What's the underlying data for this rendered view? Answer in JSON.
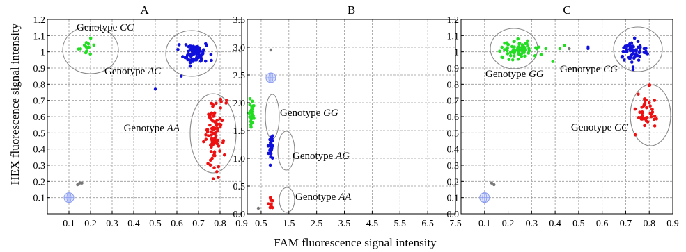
{
  "figure": {
    "y_axis_label": "HEX fluorescence signal intensity",
    "x_axis_label": "FAM fluorescence signal intensity"
  },
  "colors": {
    "green": "#22dd22",
    "blue": "#1010dd",
    "red": "#ee1111",
    "gray": "#777777",
    "grid": "#999999",
    "ellipse": "#888888",
    "ntc": "#8899ee"
  },
  "chart_data": [
    {
      "type": "scatter",
      "title": "A",
      "xlim": [
        0,
        0.9
      ],
      "ylim": [
        0,
        1.2
      ],
      "xticks": [
        0.1,
        0.2,
        0.3,
        0.4,
        0.5,
        0.6,
        0.7,
        0.8,
        0.9
      ],
      "yticks": [
        0.1,
        0.2,
        0.3,
        0.4,
        0.5,
        0.6,
        0.7,
        0.8,
        0.9,
        1.0,
        1.1,
        1.2
      ],
      "grid": true,
      "clusters": [
        {
          "label_prefix": "Genotype",
          "label_italic": "CC",
          "color": "green",
          "cx": 0.19,
          "cy": 1.035,
          "sx": 0.015,
          "sy": 0.03,
          "n": 14
        },
        {
          "label_prefix": "Genotype",
          "label_italic": "AC",
          "color": "blue",
          "cx": 0.68,
          "cy": 0.99,
          "sx": 0.03,
          "sy": 0.03,
          "n": 80
        },
        {
          "label_prefix": "Genotype",
          "label_italic": "AA",
          "color": "red",
          "cx": 0.775,
          "cy": 0.5,
          "sx": 0.02,
          "sy": 0.1,
          "n": 90
        }
      ],
      "outliers": [
        {
          "x": 0.5,
          "y": 0.77,
          "color": "blue"
        },
        {
          "x": 0.62,
          "y": 0.85,
          "color": "blue"
        },
        {
          "x": 0.83,
          "y": 0.7,
          "color": "red"
        },
        {
          "x": 0.785,
          "y": 0.26,
          "color": "red"
        },
        {
          "x": 0.14,
          "y": 0.18,
          "color": "gray"
        },
        {
          "x": 0.15,
          "y": 0.19,
          "color": "gray"
        },
        {
          "x": 0.16,
          "y": 0.19,
          "color": "gray"
        }
      ],
      "ntc": {
        "x": 0.1,
        "y": 0.1
      }
    },
    {
      "type": "scatter",
      "title": "B",
      "xlim": [
        0,
        7.5
      ],
      "ylim": [
        0,
        3.5
      ],
      "xticks": [
        0.5,
        1.5,
        2.5,
        3.5,
        4.5,
        5.5,
        6.5,
        7.5
      ],
      "yticks": [
        0.0,
        0.5,
        1.0,
        1.5,
        2.0,
        2.5,
        3.0,
        3.5
      ],
      "grid": true,
      "clusters": [
        {
          "label_prefix": "Genotype",
          "label_italic": "GG",
          "color": "green",
          "cx": 0.15,
          "cy": 1.8,
          "sx": 0.04,
          "sy": 0.12,
          "n": 30
        },
        {
          "label_prefix": "Genotype",
          "label_italic": "AG",
          "color": "blue",
          "cx": 0.85,
          "cy": 1.22,
          "sx": 0.04,
          "sy": 0.14,
          "n": 30
        },
        {
          "label_prefix": "Genotype",
          "label_italic": "AA",
          "color": "red",
          "cx": 0.85,
          "cy": 0.22,
          "sx": 0.03,
          "sy": 0.06,
          "n": 10
        }
      ],
      "outliers": [
        {
          "x": 0.85,
          "y": 2.95,
          "color": "gray"
        },
        {
          "x": 0.4,
          "y": 0.1,
          "color": "gray"
        }
      ],
      "ntc": {
        "x": 0.85,
        "y": 2.45
      }
    },
    {
      "type": "scatter",
      "title": "C",
      "xlim": [
        0,
        0.9
      ],
      "ylim": [
        0,
        1.2
      ],
      "xticks": [
        0.1,
        0.2,
        0.3,
        0.4,
        0.5,
        0.6,
        0.7,
        0.8,
        0.9
      ],
      "yticks": [
        0.0,
        0.1,
        0.2,
        0.3,
        0.4,
        0.5,
        0.6,
        0.7,
        0.8,
        0.9,
        1.0,
        1.1,
        1.2
      ],
      "grid": true,
      "clusters": [
        {
          "label_prefix": "Genotype",
          "label_italic": "GG",
          "color": "green",
          "cx": 0.24,
          "cy": 1.02,
          "sx": 0.035,
          "sy": 0.03,
          "n": 70
        },
        {
          "label_prefix": "Genotype",
          "label_italic": "CG",
          "color": "blue",
          "cx": 0.735,
          "cy": 1.0,
          "sx": 0.025,
          "sy": 0.04,
          "n": 60
        },
        {
          "label_prefix": "Genotype",
          "label_italic": "CC",
          "color": "red",
          "cx": 0.785,
          "cy": 0.63,
          "sx": 0.02,
          "sy": 0.07,
          "n": 45
        }
      ],
      "outliers": [
        {
          "x": 0.33,
          "y": 1.03,
          "color": "green"
        },
        {
          "x": 0.36,
          "y": 1.02,
          "color": "green"
        },
        {
          "x": 0.39,
          "y": 0.94,
          "color": "green"
        },
        {
          "x": 0.42,
          "y": 1.02,
          "color": "green"
        },
        {
          "x": 0.44,
          "y": 1.04,
          "color": "green"
        },
        {
          "x": 0.54,
          "y": 1.02,
          "color": "blue"
        },
        {
          "x": 0.54,
          "y": 1.03,
          "color": "blue"
        },
        {
          "x": 0.46,
          "y": 1.02,
          "color": "gray"
        },
        {
          "x": 0.13,
          "y": 0.19,
          "color": "gray"
        },
        {
          "x": 0.14,
          "y": 0.18,
          "color": "gray"
        }
      ],
      "ntc": {
        "x": 0.1,
        "y": 0.1
      }
    }
  ]
}
